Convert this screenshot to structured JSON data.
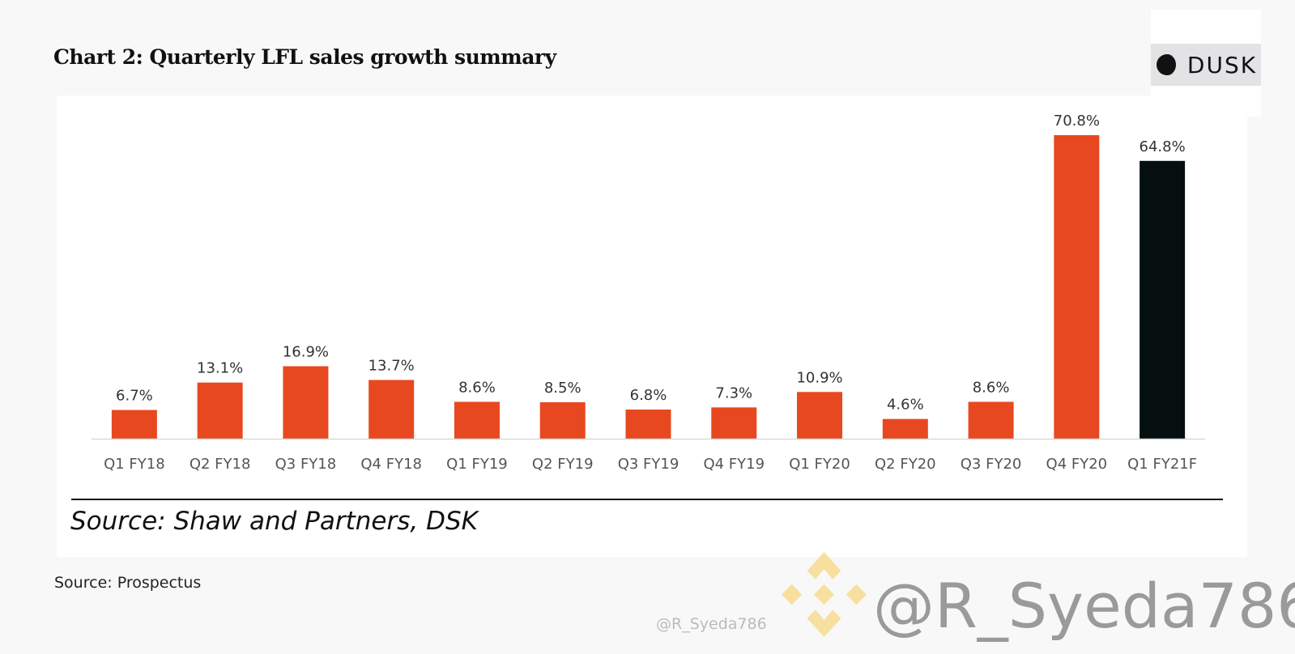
{
  "chart_data": {
    "type": "bar",
    "title": "Chart 2: Quarterly LFL sales growth summary",
    "categories": [
      "Q1 FY18",
      "Q2 FY18",
      "Q3 FY18",
      "Q4 FY18",
      "Q1 FY19",
      "Q2 FY19",
      "Q3 FY19",
      "Q4 FY19",
      "Q1 FY20",
      "Q2 FY20",
      "Q3 FY20",
      "Q4 FY20",
      "Q1 FY21F"
    ],
    "values": [
      6.7,
      13.1,
      16.9,
      13.7,
      8.6,
      8.5,
      6.8,
      7.3,
      10.9,
      4.6,
      8.6,
      70.8,
      64.8
    ],
    "data_labels": [
      "6.7%",
      "13.1%",
      "16.9%",
      "13.7%",
      "8.6%",
      "8.5%",
      "6.8%",
      "7.3%",
      "10.9%",
      "4.6%",
      "8.6%",
      "70.8%",
      "64.8%"
    ],
    "xlabel": "",
    "ylabel": "",
    "ylim": [
      0,
      75
    ],
    "grid": false,
    "colors": {
      "actual": "#e84820",
      "forecast": "#050f0f"
    },
    "bar_colors": [
      "actual",
      "actual",
      "actual",
      "actual",
      "actual",
      "actual",
      "actual",
      "actual",
      "actual",
      "actual",
      "actual",
      "actual",
      "forecast"
    ],
    "source_note": "Source: Shaw and Partners, DSK"
  },
  "caption": "Source: Prospectus",
  "logo": {
    "text": "DUSK",
    "icon": "half-moon-icon"
  },
  "watermark": {
    "text": "@R_Syeda786",
    "small_text": "@R_Syeda786",
    "icon": "binance-diamond-icon",
    "color": "#f5d98e"
  }
}
